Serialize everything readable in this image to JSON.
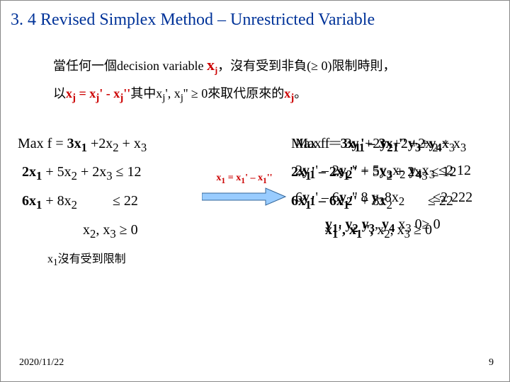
{
  "title": "3. 4 Revised Simplex Method – Unrestricted Variable",
  "intro_line1": {
    "pre": "當任何一個decision variable ",
    "var": "x",
    "sub": "j",
    "post": "，沒有受到非負(≥ 0)限制時則，"
  },
  "intro_line2": {
    "pre": "以",
    "eq": "x<sub>j</sub> = x<sub>j</sub>' - x<sub>j</sub>''",
    "mid": "其中x<sub>j</sub>', x<sub>j</sub>'' ≥ 0來取代原來的",
    "tail_var": "x<sub>j</sub>",
    "end": "。"
  },
  "left": {
    "l1": "Max f = <b>3x<sub>1</sub></b> +2x<sub>2</sub> + x<sub>3</sub>",
    "l2": "<b>2x<sub>1</sub></b> + 5x<sub>2</sub> + 2x<sub>3</sub> ≤ 12",
    "l3": "<b>6x<sub>1</sub></b> + 8x<sub>2</sub>&nbsp;&nbsp;&nbsp;&nbsp;&nbsp;&nbsp;&nbsp;&nbsp;&nbsp; ≤ 22",
    "l4": "x<sub>2</sub>, x<sub>3</sub> ≥ 0"
  },
  "arrow_label": "x<sub>1</sub> = x<sub>1</sub>' – x<sub>1</sub>''",
  "right_base": {
    "l1": "Max f = <b>3x<sub>1</sub>' – 3x<sub>1</sub>''</b> +2x<sub>2</sub> + x<sub>3</sub>",
    "l2": "<b>2x<sub>1</sub>' – 2x<sub>1</sub>''</b> + 5x<sub>2</sub> + 2x<sub>3</sub> ≤ 12",
    "l3": "<b>6x<sub>1</sub>' – 6x<sub>1</sub>''</b> + 8x<sub>2</sub>&nbsp;&nbsp;&nbsp;&nbsp;&nbsp;&nbsp;&nbsp;&nbsp;&nbsp; ≤ 22",
    "l4": "<b>x<sub>1</sub>', x<sub>1</sub>'',</b> x<sub>2</sub>, x<sub>3</sub> ≥ 0"
  },
  "overlay": {
    "o1": "Max f = 3<b>y<sub>1</sub></b>+2<b>y<sub>2</sub></b>+2<b>y<sub>3</sub></b>+<b>y<sub>4</sub></b>x<sub>3</sub>",
    "o2": "2<b>y<sub>1</sub></b>' – 2<b>y<sub>2</sub></b>'' + 5<b>y<sub>3</sub></b>x<sub>2</sub> <b>y<sub>4</sub></b>x<sub>3</sub> ≤2 12",
    "o3": "6<b>y<sub>1</sub></b>' – 6<b>y<sub>2</sub></b>'' 8 <b>y<sub>3</sub></b>8x<sub>2</sub>&nbsp;&nbsp;&nbsp;&nbsp;&nbsp;&nbsp;&nbsp; ≤2 222",
    "o4": "<b>y<sub>1</sub></b>, <b>y<sub>2</sub></b> <b>y<sub>3</sub></b>, <b>y<sub>4</sub></b> x<sub>3</sub> 0≥ 0"
  },
  "note": "x<sub>1</sub>沒有受到限制",
  "footer_date": "2020/11/22",
  "footer_num": "9",
  "colors": {
    "title": "#003399",
    "var": "#cc0000",
    "text": "#000000",
    "arrow_fill": "#99ccff",
    "arrow_stroke": "#336699"
  }
}
